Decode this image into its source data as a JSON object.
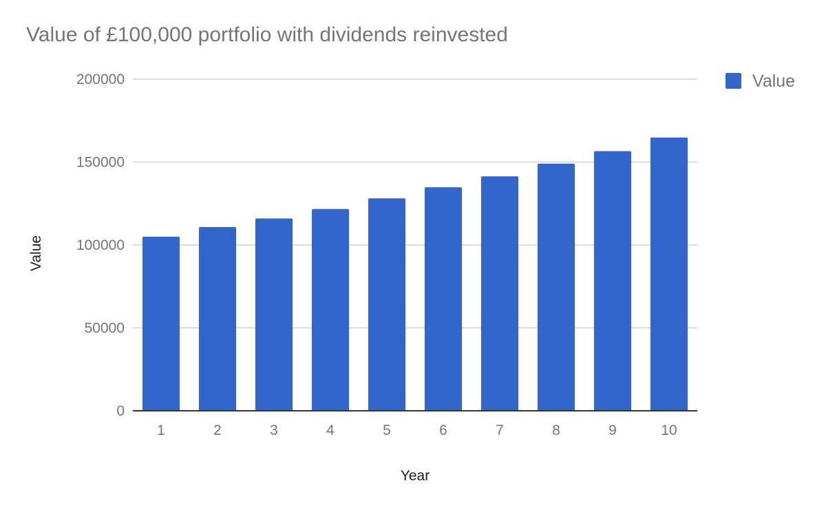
{
  "chart_data": {
    "type": "bar",
    "title": "Value of £100,000 portfolio with dividends reinvested",
    "xlabel": "Year",
    "ylabel": "Value",
    "categories": [
      "1",
      "2",
      "3",
      "4",
      "5",
      "6",
      "7",
      "8",
      "9",
      "10"
    ],
    "series": [
      {
        "name": "Value",
        "color": "#3366cc",
        "values": [
          105000,
          110800,
          116000,
          121700,
          128100,
          134800,
          141400,
          149000,
          156600,
          164800
        ]
      }
    ],
    "ylim": [
      0,
      200000
    ],
    "yticks": [
      "0",
      "50000",
      "100000",
      "150000",
      "200000"
    ],
    "grid": true,
    "legend": "right"
  }
}
